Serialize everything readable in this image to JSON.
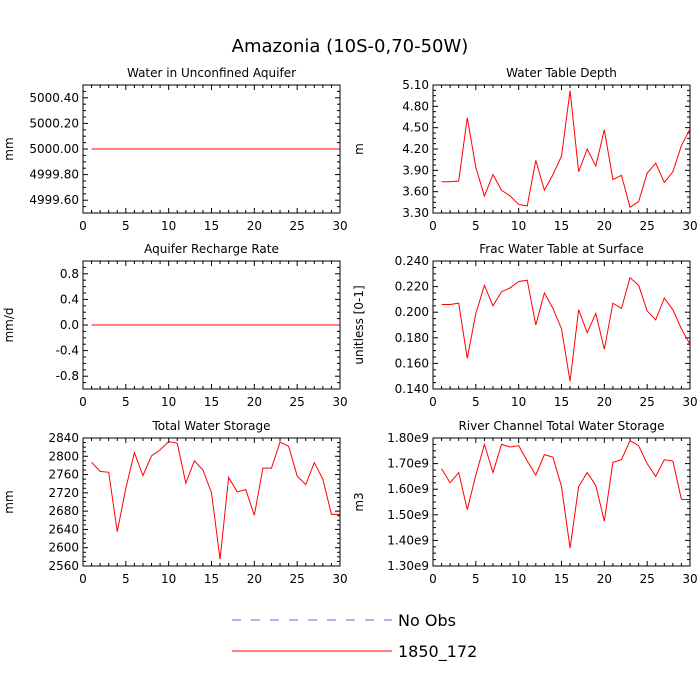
{
  "figure": {
    "title": "Amazonia (10S-0,70-50W)",
    "legend": [
      {
        "label": "No Obs",
        "color": "#6a6acd",
        "dash": "dashed"
      },
      {
        "label": "1850_172",
        "color": "#ff0000",
        "dash": "solid"
      }
    ],
    "series_color": "#ff0000"
  },
  "chart_data": [
    {
      "id": "p1",
      "type": "line",
      "title": "Water in Unconfined Aquifer",
      "ylabel": "mm",
      "xlim": [
        0,
        30
      ],
      "ylim": [
        4999.5,
        5000.5
      ],
      "xticks": [
        0,
        5,
        10,
        15,
        20,
        25,
        30
      ],
      "yticks": [
        4999.6,
        4999.8,
        5000.0,
        5000.2,
        5000.4
      ],
      "ytick_labels": [
        "4999.60",
        "4999.80",
        "5000.00",
        "5000.20",
        "5000.40"
      ],
      "series": [
        {
          "name": "1850_172",
          "x": [
            1,
            2,
            3,
            4,
            5,
            6,
            7,
            8,
            9,
            10,
            11,
            12,
            13,
            14,
            15,
            16,
            17,
            18,
            19,
            20,
            21,
            22,
            23,
            24,
            25,
            26,
            27,
            28,
            29,
            30
          ],
          "y": [
            5000,
            5000,
            5000,
            5000,
            5000,
            5000,
            5000,
            5000,
            5000,
            5000,
            5000,
            5000,
            5000,
            5000,
            5000,
            5000,
            5000,
            5000,
            5000,
            5000,
            5000,
            5000,
            5000,
            5000,
            5000,
            5000,
            5000,
            5000,
            5000,
            5000
          ]
        }
      ]
    },
    {
      "id": "p2",
      "type": "line",
      "title": "Water Table Depth",
      "ylabel": "m",
      "xlim": [
        0,
        30
      ],
      "ylim": [
        3.3,
        5.1
      ],
      "xticks": [
        0,
        5,
        10,
        15,
        20,
        25,
        30
      ],
      "yticks": [
        3.3,
        3.6,
        3.9,
        4.2,
        4.5,
        4.8,
        5.1
      ],
      "ytick_labels": [
        "3.30",
        "3.60",
        "3.90",
        "4.20",
        "4.50",
        "4.80",
        "5.10"
      ],
      "series": [
        {
          "name": "1850_172",
          "x": [
            1,
            2,
            3,
            4,
            5,
            6,
            7,
            8,
            9,
            10,
            11,
            12,
            13,
            14,
            15,
            16,
            17,
            18,
            19,
            20,
            21,
            22,
            23,
            24,
            25,
            26,
            27,
            28,
            29,
            30
          ],
          "y": [
            3.74,
            3.74,
            3.75,
            4.64,
            3.94,
            3.54,
            3.84,
            3.62,
            3.54,
            3.42,
            3.4,
            4.04,
            3.62,
            3.84,
            4.1,
            5.02,
            3.88,
            4.2,
            3.96,
            4.47,
            3.77,
            3.83,
            3.38,
            3.46,
            3.86,
            4.0,
            3.73,
            3.88,
            4.25,
            4.48
          ]
        }
      ]
    },
    {
      "id": "p3",
      "type": "line",
      "title": "Aquifer Recharge Rate",
      "ylabel": "mm/d",
      "xlim": [
        0,
        30
      ],
      "ylim": [
        -1.0,
        1.0
      ],
      "xticks": [
        0,
        5,
        10,
        15,
        20,
        25,
        30
      ],
      "yticks": [
        -0.8,
        -0.4,
        0.0,
        0.4,
        0.8
      ],
      "ytick_labels": [
        "-0.8",
        "-0.4",
        "0.0",
        "0.4",
        "0.8"
      ],
      "series": [
        {
          "name": "1850_172",
          "x": [
            1,
            2,
            3,
            4,
            5,
            6,
            7,
            8,
            9,
            10,
            11,
            12,
            13,
            14,
            15,
            16,
            17,
            18,
            19,
            20,
            21,
            22,
            23,
            24,
            25,
            26,
            27,
            28,
            29,
            30
          ],
          "y": [
            0,
            0,
            0,
            0,
            0,
            0,
            0,
            0,
            0,
            0,
            0,
            0,
            0,
            0,
            0,
            0,
            0,
            0,
            0,
            0,
            0,
            0,
            0,
            0,
            0,
            0,
            0,
            0,
            0,
            0
          ]
        }
      ]
    },
    {
      "id": "p4",
      "type": "line",
      "title": "Frac Water Table at Surface",
      "ylabel": "unitless [0-1]",
      "xlim": [
        0,
        30
      ],
      "ylim": [
        0.14,
        0.24
      ],
      "xticks": [
        0,
        5,
        10,
        15,
        20,
        25,
        30
      ],
      "yticks": [
        0.14,
        0.16,
        0.18,
        0.2,
        0.22,
        0.24
      ],
      "ytick_labels": [
        "0.140",
        "0.160",
        "0.180",
        "0.200",
        "0.220",
        "0.240"
      ],
      "series": [
        {
          "name": "1850_172",
          "x": [
            1,
            2,
            3,
            4,
            5,
            6,
            7,
            8,
            9,
            10,
            11,
            12,
            13,
            14,
            15,
            16,
            17,
            18,
            19,
            20,
            21,
            22,
            23,
            24,
            25,
            26,
            27,
            28,
            29,
            30
          ],
          "y": [
            0.206,
            0.206,
            0.207,
            0.164,
            0.199,
            0.221,
            0.205,
            0.216,
            0.219,
            0.224,
            0.225,
            0.19,
            0.215,
            0.203,
            0.187,
            0.146,
            0.202,
            0.184,
            0.199,
            0.171,
            0.207,
            0.203,
            0.227,
            0.221,
            0.201,
            0.194,
            0.211,
            0.202,
            0.187,
            0.175
          ]
        }
      ]
    },
    {
      "id": "p5",
      "type": "line",
      "title": "Total Water Storage",
      "ylabel": "mm",
      "xlim": [
        0,
        30
      ],
      "ylim": [
        2560,
        2840
      ],
      "xticks": [
        0,
        5,
        10,
        15,
        20,
        25,
        30
      ],
      "yticks": [
        2560,
        2600,
        2640,
        2680,
        2720,
        2760,
        2800,
        2840
      ],
      "ytick_labels": [
        "2560",
        "2600",
        "2640",
        "2680",
        "2720",
        "2760",
        "2800",
        "2840"
      ],
      "series": [
        {
          "name": "1850_172",
          "x": [
            1,
            2,
            3,
            4,
            5,
            6,
            7,
            8,
            9,
            10,
            11,
            12,
            13,
            14,
            15,
            16,
            17,
            18,
            19,
            20,
            21,
            22,
            23,
            24,
            25,
            26,
            27,
            28,
            29,
            30
          ],
          "y": [
            2787,
            2767,
            2765,
            2635,
            2730,
            2808,
            2758,
            2801,
            2814,
            2832,
            2829,
            2741,
            2790,
            2770,
            2720,
            2575,
            2754,
            2722,
            2727,
            2671,
            2774,
            2774,
            2831,
            2822,
            2757,
            2738,
            2786,
            2750,
            2673,
            2673
          ]
        }
      ]
    },
    {
      "id": "p6",
      "type": "line",
      "title": "River Channel Total Water Storage",
      "ylabel": "m3",
      "xlim": [
        0,
        30
      ],
      "ylim": [
        1300000000.0,
        1800000000.0
      ],
      "xticks": [
        0,
        5,
        10,
        15,
        20,
        25,
        30
      ],
      "yticks": [
        1300000000.0,
        1400000000.0,
        1500000000.0,
        1600000000.0,
        1700000000.0,
        1800000000.0
      ],
      "ytick_labels": [
        "1.30e9",
        "1.40e9",
        "1.50e9",
        "1.60e9",
        "1.70e9",
        "1.80e9"
      ],
      "series": [
        {
          "name": "1850_172",
          "x": [
            1,
            2,
            3,
            4,
            5,
            6,
            7,
            8,
            9,
            10,
            11,
            12,
            13,
            14,
            15,
            16,
            17,
            18,
            19,
            20,
            21,
            22,
            23,
            24,
            25,
            26,
            27,
            28,
            29,
            30
          ],
          "y": [
            1680000000.0,
            1625000000.0,
            1665000000.0,
            1520000000.0,
            1655000000.0,
            1775000000.0,
            1665000000.0,
            1775000000.0,
            1765000000.0,
            1770000000.0,
            1710000000.0,
            1655000000.0,
            1735000000.0,
            1725000000.0,
            1610000000.0,
            1370000000.0,
            1610000000.0,
            1665000000.0,
            1615000000.0,
            1475000000.0,
            1705000000.0,
            1715000000.0,
            1790000000.0,
            1770000000.0,
            1700000000.0,
            1650000000.0,
            1715000000.0,
            1710000000.0,
            1560000000.0,
            1560000000.0
          ]
        }
      ]
    }
  ]
}
